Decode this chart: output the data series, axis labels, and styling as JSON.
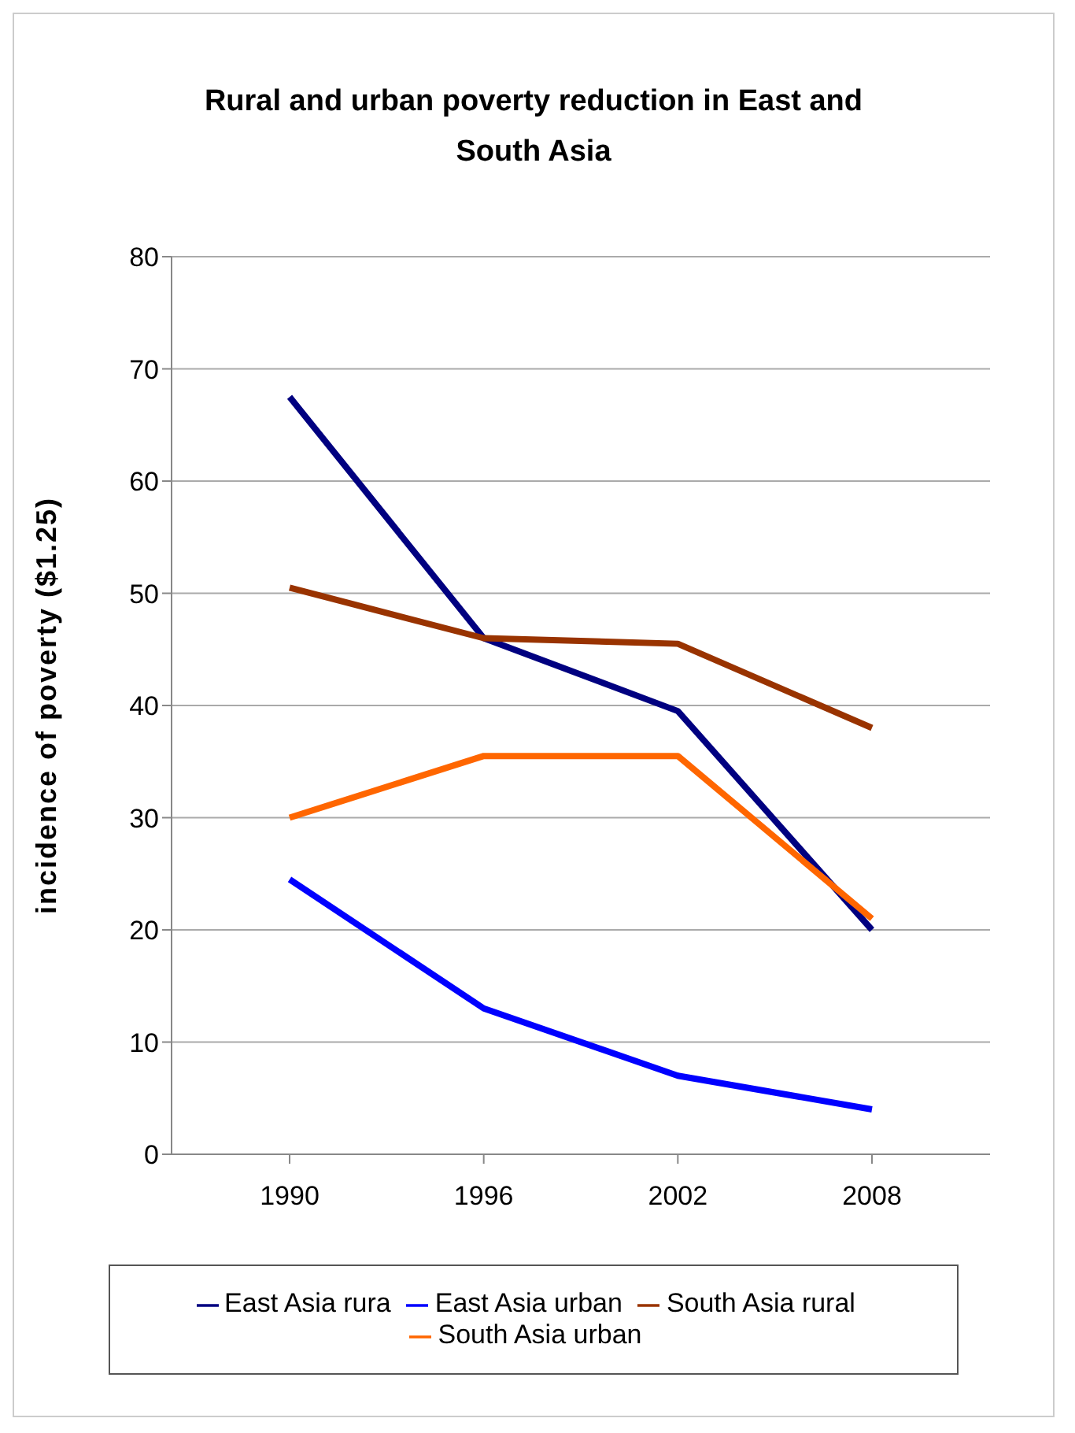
{
  "chart_data": {
    "type": "line",
    "title": "Rural and urban poverty reduction in East and South Asia",
    "ylabel": "incidence of poverty ($1.25)",
    "categories": [
      "1990",
      "1996",
      "2002",
      "2008"
    ],
    "series": [
      {
        "name": "East Asia rura",
        "color": "#000080",
        "values": [
          67.5,
          46,
          39.5,
          20
        ]
      },
      {
        "name": "East Asia urban",
        "color": "#0000ff",
        "values": [
          24.5,
          13,
          7,
          4
        ]
      },
      {
        "name": "South Asia rural",
        "color": "#993300",
        "values": [
          50.5,
          46,
          45.5,
          38
        ]
      },
      {
        "name": "South Asia urban",
        "color": "#ff6600",
        "values": [
          30,
          35.5,
          35.5,
          21
        ]
      }
    ],
    "ylim": [
      0,
      80
    ],
    "yticks": [
      0,
      10,
      20,
      30,
      40,
      50,
      60,
      70,
      80
    ],
    "grid": "y",
    "legend": "bottom",
    "marker": "none",
    "line_style": "solid"
  }
}
